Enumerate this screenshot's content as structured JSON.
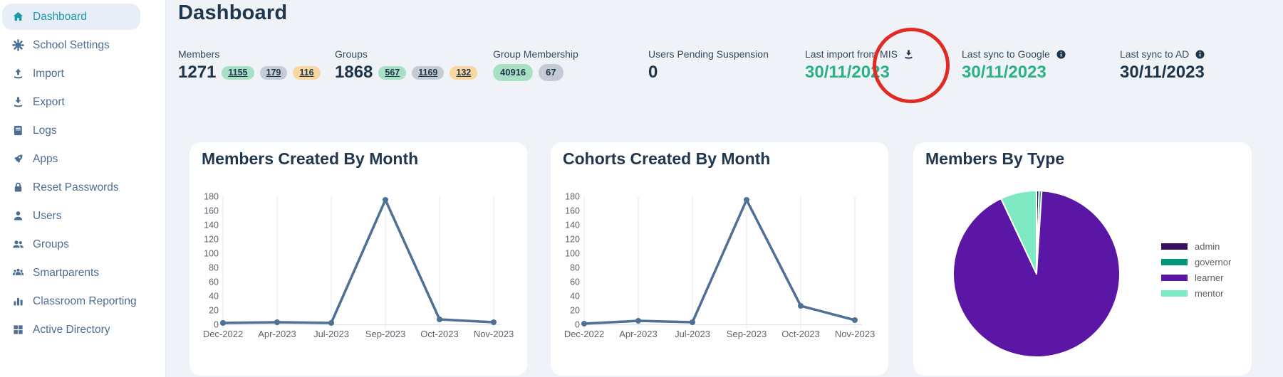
{
  "header": {
    "title": "Dashboard"
  },
  "sidebar": {
    "items": [
      {
        "label": "Dashboard",
        "icon": "home-icon",
        "active": true
      },
      {
        "label": "School Settings",
        "icon": "gear-icon",
        "active": false
      },
      {
        "label": "Import",
        "icon": "upload-icon",
        "active": false
      },
      {
        "label": "Export",
        "icon": "download-icon",
        "active": false
      },
      {
        "label": "Logs",
        "icon": "book-icon",
        "active": false
      },
      {
        "label": "Apps",
        "icon": "rocket-icon",
        "active": false
      },
      {
        "label": "Reset Passwords",
        "icon": "lock-icon",
        "active": false
      },
      {
        "label": "Users",
        "icon": "user-icon",
        "active": false
      },
      {
        "label": "Groups",
        "icon": "users-icon",
        "active": false
      },
      {
        "label": "Smartparents",
        "icon": "family-icon",
        "active": false
      },
      {
        "label": "Classroom Reporting",
        "icon": "bar-chart-icon",
        "active": false
      },
      {
        "label": "Active Directory",
        "icon": "grid-icon",
        "active": false
      }
    ]
  },
  "stats": [
    {
      "label": "Members",
      "value": "1271",
      "badges": [
        {
          "text": "1155",
          "style": "green",
          "link": true
        },
        {
          "text": "179",
          "style": "gray",
          "link": true
        },
        {
          "text": "116",
          "style": "orange",
          "link": true
        }
      ]
    },
    {
      "label": "Groups",
      "value": "1868",
      "badges": [
        {
          "text": "567",
          "style": "green",
          "link": true
        },
        {
          "text": "1169",
          "style": "gray",
          "link": true
        },
        {
          "text": "132",
          "style": "orange",
          "link": true
        }
      ]
    },
    {
      "label": "Group Membership",
      "badges": [
        {
          "text": "40916",
          "style": "green",
          "large": true
        },
        {
          "text": "67",
          "style": "gray",
          "large": true
        }
      ]
    },
    {
      "label": "Users Pending Suspension",
      "value": "0"
    },
    {
      "label": "Last import from MIS",
      "label_icon": "download-icon",
      "value": "30/11/2023",
      "value_color": "green"
    },
    {
      "label": "Last sync to Google",
      "label_icon": "info-icon",
      "value": "30/11/2023",
      "value_color": "green"
    },
    {
      "label": "Last sync to AD",
      "label_icon": "info-icon",
      "value": "30/11/2023",
      "value_color": "navy"
    }
  ],
  "annotation": {
    "shape": "hand-drawn red circle",
    "around": "Last import from MIS download icon",
    "color": "#e12a21"
  },
  "colors": {
    "accent_teal": "#1899a9",
    "sidebar_text": "#4d6e92",
    "navy_text": "#1e3449",
    "green_value": "#2bb186",
    "line_series": "#4d7094",
    "badge_green_bg": "#a8dfc5",
    "badge_gray_bg": "#c5cbd4",
    "badge_orange_bg": "#f8d7a0"
  },
  "chart_data": [
    {
      "type": "line",
      "title": "Members Created By Month",
      "x": [
        "Dec-2022",
        "Apr-2023",
        "Jul-2023",
        "Sep-2023",
        "Oct-2023",
        "Nov-2023"
      ],
      "values": [
        2,
        3,
        2,
        175,
        7,
        3
      ],
      "ylim": [
        0,
        180
      ],
      "ytick_step": 20,
      "grid": "vertical-only",
      "legend": "none",
      "line_color": "#4d7094"
    },
    {
      "type": "line",
      "title": "Cohorts Created By Month",
      "x": [
        "Dec-2022",
        "Apr-2023",
        "Jul-2023",
        "Sep-2023",
        "Oct-2023",
        "Nov-2023"
      ],
      "values": [
        1,
        5,
        3,
        175,
        26,
        6
      ],
      "ylim": [
        0,
        180
      ],
      "ytick_step": 20,
      "grid": "vertical-only",
      "legend": "none",
      "line_color": "#4d7094"
    },
    {
      "type": "pie",
      "title": "Members By Type",
      "labels": [
        "admin",
        "governor",
        "learner",
        "mentor"
      ],
      "values_percent": [
        0.5,
        0.5,
        92,
        7
      ],
      "colors": [
        "#38125c",
        "#00967a",
        "#5c16a5",
        "#7ee9c2"
      ],
      "legend_position": "right"
    }
  ]
}
